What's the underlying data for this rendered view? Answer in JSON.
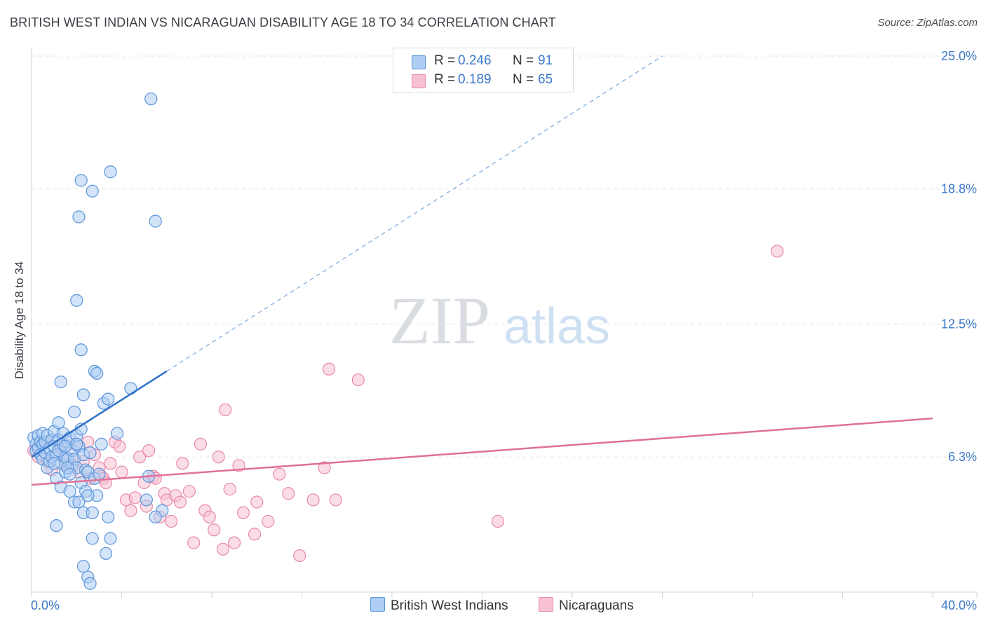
{
  "title": "BRITISH WEST INDIAN VS NICARAGUAN DISABILITY AGE 18 TO 34 CORRELATION CHART",
  "source": "Source: ZipAtlas.com",
  "watermark": {
    "zip": "ZIP",
    "atlas": "atlas"
  },
  "colors": {
    "blue_fill": "#aecdf3",
    "blue_stroke": "#5b95db",
    "blue_line": "#2f72c9",
    "pink_fill": "#f7c1d2",
    "pink_stroke": "#e889a9",
    "pink_line": "#e0709a",
    "axis_text_blue": "#3a78c9",
    "grid": "#dfe3e7"
  },
  "legend": {
    "series": [
      {
        "swatch_color": "#aecdf3",
        "r_label": "R =",
        "r_value": "0.246",
        "n_label": "N =",
        "n_value": "91"
      },
      {
        "swatch_color": "#f7c1d2",
        "r_label": "R =",
        "r_value": "0.189",
        "n_label": "N =",
        "n_value": "65"
      }
    ],
    "bottom": [
      {
        "label": "British West Indians",
        "swatch_color": "#aecdf3"
      },
      {
        "label": "Nicaraguans",
        "swatch_color": "#f7c1d2"
      }
    ]
  },
  "chart_data": {
    "type": "scatter",
    "title": "BRITISH WEST INDIAN VS NICARAGUAN DISABILITY AGE 18 TO 34 CORRELATION CHART",
    "xlabel": "",
    "ylabel": "Disability Age 18 to 34",
    "xlim": [
      0,
      40
    ],
    "ylim": [
      0,
      25
    ],
    "x_tick_labels": [
      "0.0%",
      "40.0%"
    ],
    "y_ticks": [
      6.3,
      12.5,
      18.8,
      25.0
    ],
    "y_tick_labels": [
      "6.3%",
      "12.5%",
      "18.8%",
      "25.0%"
    ],
    "grid": true,
    "series": [
      {
        "name": "British West Indians",
        "r": 0.246,
        "n": 91,
        "trend": {
          "x0": 0.0,
          "y0": 6.3,
          "x1": 6.0,
          "y1": 10.3,
          "dashed_to_x": 28.0,
          "dashed_to_y": 25.0
        },
        "points": [
          [
            0.1,
            7.2
          ],
          [
            0.2,
            6.9
          ],
          [
            0.2,
            6.6
          ],
          [
            0.3,
            7.3
          ],
          [
            0.3,
            6.7
          ],
          [
            0.4,
            6.4
          ],
          [
            0.4,
            7.0
          ],
          [
            0.5,
            6.9
          ],
          [
            0.5,
            6.2
          ],
          [
            0.5,
            7.4
          ],
          [
            0.6,
            6.5
          ],
          [
            0.6,
            7.0
          ],
          [
            0.7,
            5.8
          ],
          [
            0.7,
            7.3
          ],
          [
            0.8,
            6.7
          ],
          [
            0.8,
            6.1
          ],
          [
            0.9,
            7.1
          ],
          [
            0.9,
            6.3
          ],
          [
            1.0,
            7.5
          ],
          [
            1.0,
            6.8
          ],
          [
            1.1,
            6.4
          ],
          [
            1.1,
            5.3
          ],
          [
            1.2,
            7.1
          ],
          [
            1.2,
            6.6
          ],
          [
            1.3,
            6.0
          ],
          [
            1.3,
            4.9
          ],
          [
            1.4,
            7.4
          ],
          [
            1.4,
            6.9
          ],
          [
            1.5,
            6.3
          ],
          [
            1.5,
            5.6
          ],
          [
            1.6,
            7.0
          ],
          [
            1.6,
            6.2
          ],
          [
            1.7,
            4.7
          ],
          [
            1.7,
            7.2
          ],
          [
            1.8,
            5.9
          ],
          [
            1.8,
            6.6
          ],
          [
            1.9,
            4.2
          ],
          [
            1.9,
            6.2
          ],
          [
            2.0,
            7.3
          ],
          [
            2.0,
            5.8
          ],
          [
            2.1,
            6.8
          ],
          [
            2.1,
            4.2
          ],
          [
            2.2,
            5.1
          ],
          [
            2.2,
            7.6
          ],
          [
            2.3,
            3.7
          ],
          [
            2.3,
            6.4
          ],
          [
            2.4,
            4.7
          ],
          [
            2.4,
            5.7
          ],
          [
            2.5,
            5.6
          ],
          [
            2.6,
            6.5
          ],
          [
            2.7,
            3.7
          ],
          [
            2.8,
            5.3
          ],
          [
            2.9,
            4.5
          ],
          [
            3.0,
            5.5
          ],
          [
            3.1,
            6.9
          ],
          [
            3.2,
            8.8
          ],
          [
            3.4,
            9.0
          ],
          [
            1.3,
            9.8
          ],
          [
            1.5,
            6.8
          ],
          [
            1.6,
            5.8
          ],
          [
            1.7,
            5.5
          ],
          [
            1.9,
            8.4
          ],
          [
            2.0,
            6.9
          ],
          [
            2.3,
            9.2
          ],
          [
            2.5,
            4.5
          ],
          [
            2.8,
            10.3
          ],
          [
            2.9,
            10.2
          ],
          [
            2.2,
            11.3
          ],
          [
            1.2,
            7.9
          ],
          [
            1.0,
            6.0
          ],
          [
            3.4,
            3.5
          ],
          [
            3.8,
            7.4
          ],
          [
            4.4,
            9.5
          ],
          [
            5.2,
            5.4
          ],
          [
            5.1,
            4.3
          ],
          [
            5.8,
            3.8
          ],
          [
            5.5,
            3.5
          ],
          [
            3.3,
            1.8
          ],
          [
            3.5,
            2.5
          ],
          [
            2.7,
            2.5
          ],
          [
            1.1,
            3.1
          ],
          [
            2.3,
            1.2
          ],
          [
            2.5,
            0.7
          ],
          [
            2.6,
            0.4
          ],
          [
            2.0,
            13.6
          ],
          [
            2.2,
            19.2
          ],
          [
            2.7,
            18.7
          ],
          [
            3.5,
            19.6
          ],
          [
            2.1,
            17.5
          ],
          [
            5.5,
            17.3
          ],
          [
            5.3,
            23.0
          ]
        ]
      },
      {
        "name": "Nicaraguans",
        "r": 0.189,
        "n": 65,
        "trend": {
          "x0": 0.0,
          "y0": 5.0,
          "x1": 40.0,
          "y1": 8.1
        },
        "points": [
          [
            0.1,
            6.6
          ],
          [
            0.3,
            6.3
          ],
          [
            0.5,
            6.9
          ],
          [
            0.7,
            6.1
          ],
          [
            0.9,
            5.7
          ],
          [
            1.1,
            6.4
          ],
          [
            1.3,
            6.8
          ],
          [
            1.5,
            5.9
          ],
          [
            1.7,
            6.2
          ],
          [
            1.9,
            6.9
          ],
          [
            2.1,
            5.6
          ],
          [
            2.3,
            6.1
          ],
          [
            2.5,
            7.0
          ],
          [
            2.6,
            5.3
          ],
          [
            2.8,
            6.4
          ],
          [
            3.0,
            5.8
          ],
          [
            3.1,
            5.4
          ],
          [
            3.2,
            5.3
          ],
          [
            3.3,
            5.1
          ],
          [
            3.5,
            6.0
          ],
          [
            3.7,
            7.0
          ],
          [
            3.9,
            6.8
          ],
          [
            4.0,
            5.6
          ],
          [
            4.2,
            4.3
          ],
          [
            4.4,
            3.8
          ],
          [
            4.6,
            4.4
          ],
          [
            4.8,
            6.3
          ],
          [
            5.0,
            5.1
          ],
          [
            5.1,
            4.0
          ],
          [
            5.2,
            6.6
          ],
          [
            5.4,
            5.4
          ],
          [
            5.5,
            5.3
          ],
          [
            5.7,
            3.5
          ],
          [
            5.9,
            4.6
          ],
          [
            6.0,
            4.3
          ],
          [
            6.2,
            3.3
          ],
          [
            6.4,
            4.5
          ],
          [
            6.6,
            4.2
          ],
          [
            6.7,
            6.0
          ],
          [
            7.0,
            4.7
          ],
          [
            7.2,
            2.3
          ],
          [
            7.5,
            6.9
          ],
          [
            7.7,
            3.8
          ],
          [
            7.9,
            3.5
          ],
          [
            8.1,
            2.9
          ],
          [
            8.3,
            6.3
          ],
          [
            8.5,
            2.0
          ],
          [
            8.6,
            8.5
          ],
          [
            8.8,
            4.8
          ],
          [
            9.2,
            5.9
          ],
          [
            9.4,
            3.7
          ],
          [
            10.0,
            4.2
          ],
          [
            10.5,
            3.3
          ],
          [
            11.0,
            5.5
          ],
          [
            11.4,
            4.6
          ],
          [
            11.9,
            1.7
          ],
          [
            12.5,
            4.3
          ],
          [
            13.0,
            5.8
          ],
          [
            13.5,
            4.3
          ],
          [
            14.5,
            9.9
          ],
          [
            13.2,
            10.4
          ],
          [
            9.9,
            2.7
          ],
          [
            9.0,
            2.3
          ],
          [
            20.7,
            3.3
          ],
          [
            33.1,
            15.9
          ]
        ]
      }
    ]
  }
}
